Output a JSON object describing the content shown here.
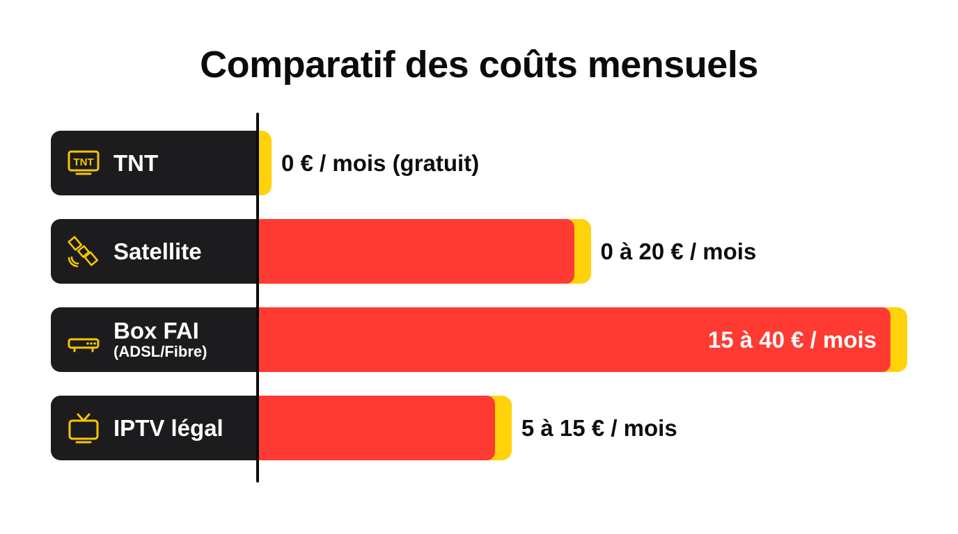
{
  "chart_data": {
    "type": "bar",
    "orientation": "horizontal",
    "title": "Comparatif des coûts mensuels",
    "unit": "€ / mois",
    "xlim": [
      0,
      40
    ],
    "grid": false,
    "legend": "none",
    "categories": [
      {
        "label": "TNT",
        "sublabel": "",
        "icon": "tnt-tv-icon",
        "min": 0,
        "max": 0,
        "value_label": "0 € / mois (gratuit)",
        "label_inside": false
      },
      {
        "label": "Satellite",
        "sublabel": "",
        "icon": "satellite-icon",
        "min": 0,
        "max": 20,
        "value_label": "0 à 20 € / mois",
        "label_inside": false
      },
      {
        "label": "Box FAI",
        "sublabel": "(ADSL/Fibre)",
        "icon": "router-icon",
        "min": 15,
        "max": 40,
        "value_label": "15 à 40 € / mois",
        "label_inside": true
      },
      {
        "label": "IPTV légal",
        "sublabel": "",
        "icon": "tv-icon",
        "min": 5,
        "max": 15,
        "value_label": "5 à 15 € / mois",
        "label_inside": false
      }
    ],
    "colors": {
      "bar": "#ff3a33",
      "accent": "#ffd20a",
      "label_box": "#1c1c1f",
      "icon": "#f7c600"
    }
  }
}
